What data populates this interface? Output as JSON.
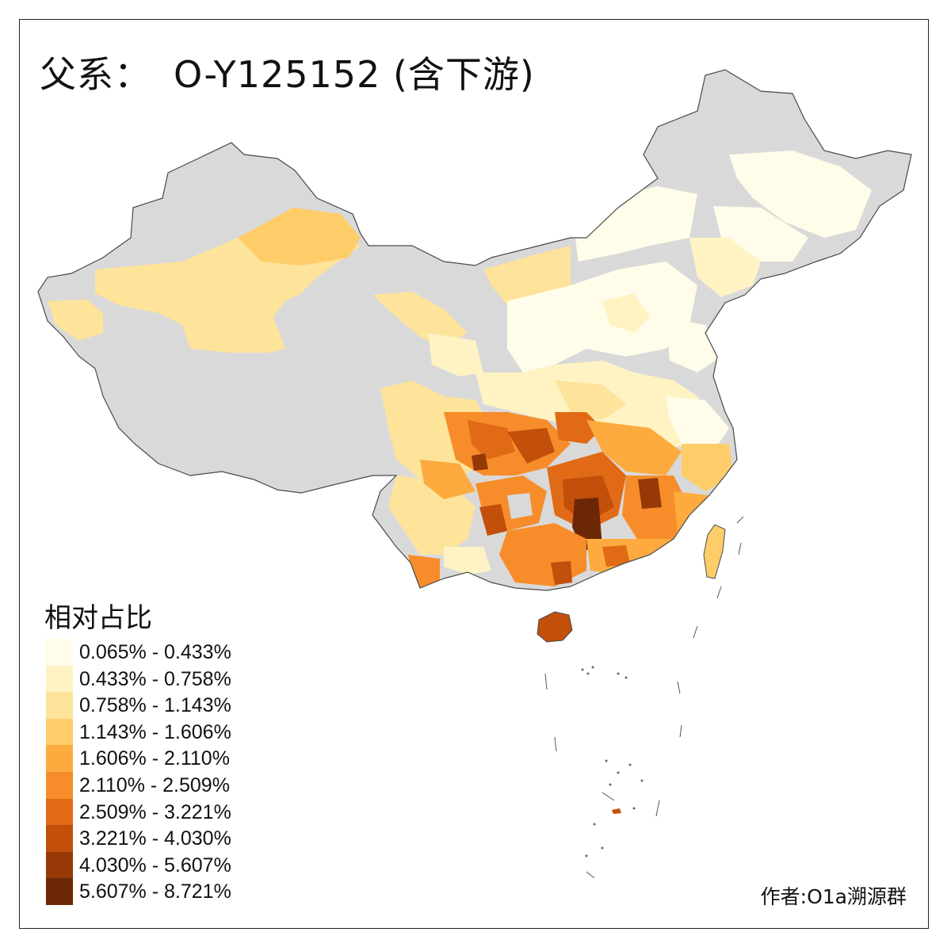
{
  "title": {
    "prefix": "父系：",
    "main": "O-Y125152 (含下游)"
  },
  "legend": {
    "title": "相对占比",
    "classes": [
      {
        "label": "0.065% - 0.433%",
        "color": "#fffde9"
      },
      {
        "label": "0.433% - 0.758%",
        "color": "#fff3c4"
      },
      {
        "label": "0.758% - 1.143%",
        "color": "#fee39a"
      },
      {
        "label": "1.143% - 1.606%",
        "color": "#fecd6a"
      },
      {
        "label": "1.606% - 2.110%",
        "color": "#fdab3f"
      },
      {
        "label": "2.110% - 2.509%",
        "color": "#f68d2a"
      },
      {
        "label": "2.509% - 3.221%",
        "color": "#e06a16"
      },
      {
        "label": "3.221% - 4.030%",
        "color": "#c24f0a"
      },
      {
        "label": "4.030% - 5.607%",
        "color": "#973906"
      },
      {
        "label": "5.607% - 8.721%",
        "color": "#6b2706"
      }
    ]
  },
  "no_data_color": "#d9d9d9",
  "credit": "作者:O1a溯源群"
}
